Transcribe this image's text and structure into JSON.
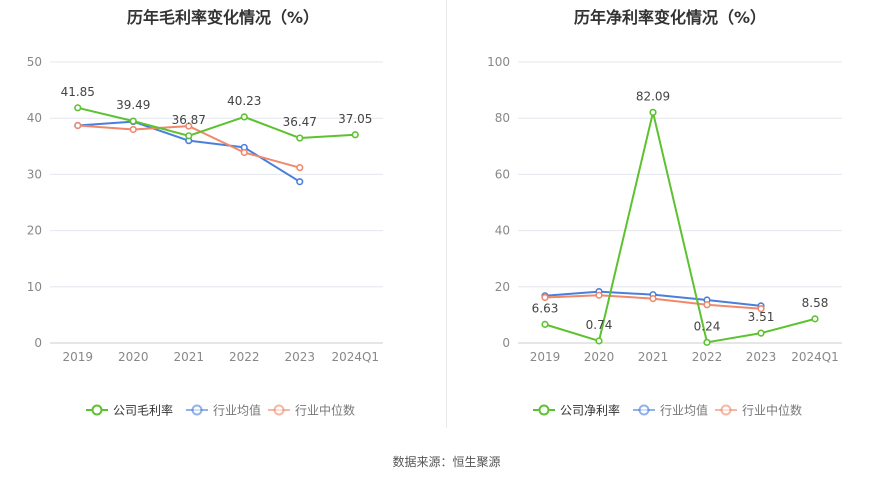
{
  "footer": {
    "source": "数据来源：恒生聚源"
  },
  "chart_data": [
    {
      "type": "line",
      "title": "历年毛利率变化情况（%）",
      "categories": [
        "2019",
        "2020",
        "2021",
        "2022",
        "2023",
        "2024Q1"
      ],
      "ylim": [
        0,
        50
      ],
      "yticks": [
        0,
        10,
        20,
        30,
        40,
        50
      ],
      "grid": true,
      "legend_position": "bottom",
      "series": [
        {
          "name": "公司毛利率",
          "color": "#5cc22f",
          "values": [
            41.85,
            39.49,
            36.87,
            40.23,
            36.47,
            37.05
          ],
          "labels": [
            "41.85",
            "39.49",
            "36.87",
            "40.23",
            "36.47",
            "37.05"
          ]
        },
        {
          "name": "行业均值",
          "color": "#4a7fdb",
          "values": [
            38.7,
            39.4,
            36.0,
            34.8,
            28.7,
            null
          ],
          "labels": null
        },
        {
          "name": "行业中位数",
          "color": "#f0896b",
          "values": [
            38.7,
            38.0,
            38.6,
            33.9,
            31.2,
            null
          ],
          "labels": null
        }
      ]
    },
    {
      "type": "line",
      "title": "历年净利率变化情况（%）",
      "categories": [
        "2019",
        "2020",
        "2021",
        "2022",
        "2023",
        "2024Q1"
      ],
      "ylim": [
        0,
        100
      ],
      "yticks": [
        0,
        20,
        40,
        60,
        80,
        100
      ],
      "grid": true,
      "legend_position": "bottom",
      "series": [
        {
          "name": "公司净利率",
          "color": "#5cc22f",
          "values": [
            6.63,
            0.74,
            82.09,
            0.24,
            3.51,
            8.58
          ],
          "labels": [
            "6.63",
            "0.74",
            "82.09",
            "0.24",
            "3.51",
            "8.58"
          ]
        },
        {
          "name": "行业均值",
          "color": "#4a7fdb",
          "values": [
            16.8,
            18.3,
            17.2,
            15.3,
            13.2,
            null
          ],
          "labels": null
        },
        {
          "name": "行业中位数",
          "color": "#f0896b",
          "values": [
            16.2,
            17.0,
            15.8,
            13.6,
            12.2,
            null
          ],
          "labels": null
        }
      ]
    }
  ]
}
